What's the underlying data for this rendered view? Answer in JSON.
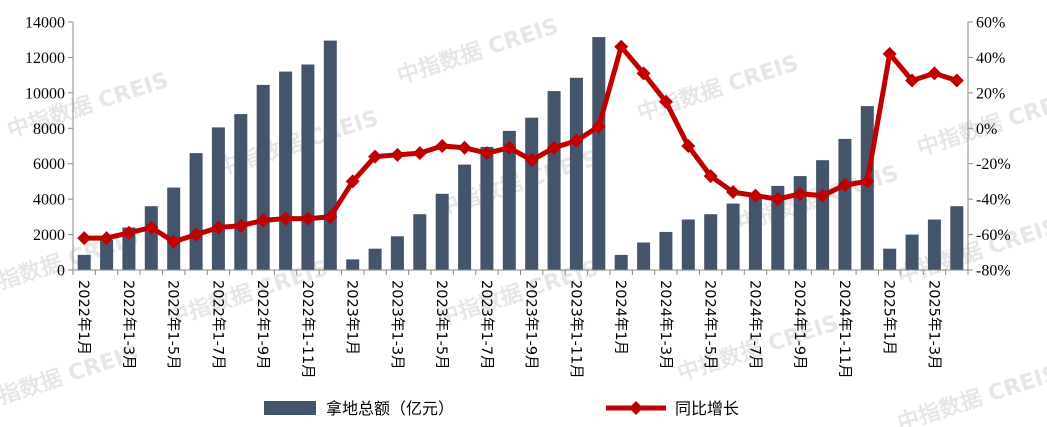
{
  "watermark": "中指数据 CREIS",
  "chart_data": {
    "type": "bar+line",
    "left_axis": {
      "ylim": [
        0,
        14000
      ],
      "ticks": [
        "0",
        "2000",
        "4000",
        "6000",
        "8000",
        "10000",
        "12000",
        "14000"
      ]
    },
    "right_axis": {
      "ylim": [
        -80,
        60
      ],
      "ticks": [
        "-80%",
        "-60%",
        "-40%",
        "-20%",
        "0%",
        "20%",
        "40%",
        "60%"
      ]
    },
    "x": [
      "2022-1",
      "2022-2",
      "2022-3",
      "2022-4",
      "2022-5",
      "2022-6",
      "2022-7",
      "2022-8",
      "2022-9",
      "2022-10",
      "2022-11",
      "2022-12",
      "2023-1",
      "2023-2",
      "2023-3",
      "2023-4",
      "2023-5",
      "2023-6",
      "2023-7",
      "2023-8",
      "2023-9",
      "2023-10",
      "2023-11",
      "2023-12",
      "2024-1",
      "2024-2",
      "2024-3",
      "2024-4",
      "2024-5",
      "2024-6",
      "2024-7",
      "2024-8",
      "2024-9",
      "2024-10",
      "2024-11",
      "2024-12",
      "2025-1",
      "2025-2",
      "2025-3",
      "2025-4"
    ],
    "x_tick_labels": [
      {
        "index": 0,
        "label": "2022年1月"
      },
      {
        "index": 2,
        "label": "2022年1-3月"
      },
      {
        "index": 4,
        "label": "2022年1-5月"
      },
      {
        "index": 6,
        "label": "2022年1-7月"
      },
      {
        "index": 8,
        "label": "2022年1-9月"
      },
      {
        "index": 10,
        "label": "2022年1-11月"
      },
      {
        "index": 12,
        "label": "2023年1月"
      },
      {
        "index": 14,
        "label": "2023年1-3月"
      },
      {
        "index": 16,
        "label": "2023年1-5月"
      },
      {
        "index": 18,
        "label": "2023年1-7月"
      },
      {
        "index": 20,
        "label": "2023年1-9月"
      },
      {
        "index": 22,
        "label": "2023年1-11月"
      },
      {
        "index": 24,
        "label": "2024年1月"
      },
      {
        "index": 26,
        "label": "2024年1-3月"
      },
      {
        "index": 28,
        "label": "2024年1-5月"
      },
      {
        "index": 30,
        "label": "2024年1-7月"
      },
      {
        "index": 32,
        "label": "2024年1-9月"
      },
      {
        "index": 34,
        "label": "2024年1-11月"
      },
      {
        "index": 36,
        "label": "2025年1月"
      },
      {
        "index": 38,
        "label": "2025年1-3月"
      }
    ],
    "series": [
      {
        "name": "拿地总额（亿元）",
        "type": "bar",
        "axis": "left",
        "color": "#44546a",
        "values": [
          850,
          1700,
          2400,
          3600,
          4650,
          6600,
          8050,
          8800,
          10450,
          11200,
          11600,
          12950,
          600,
          1200,
          1900,
          3150,
          4300,
          5950,
          6950,
          7850,
          8600,
          10100,
          10850,
          13150,
          850,
          1550,
          2150,
          2850,
          3150,
          3750,
          4250,
          4750,
          5300,
          6200,
          7400,
          9250,
          1200,
          2000,
          2850,
          3600
        ]
      },
      {
        "name": "同比增长",
        "type": "line",
        "axis": "right",
        "color": "#c00000",
        "values": [
          -62,
          -62,
          -59,
          -56,
          -64,
          -60,
          -56,
          -55,
          -52,
          -51,
          -51,
          -50,
          -30,
          -16,
          -15,
          -14,
          -10,
          -11,
          -14,
          -11,
          -18,
          -11,
          -7,
          1,
          46,
          31,
          15,
          -10,
          -27,
          -36,
          -38,
          -40,
          -37,
          -38,
          -32,
          -30,
          42,
          27,
          31,
          27
        ]
      }
    ],
    "legend_position": "bottom-center"
  }
}
